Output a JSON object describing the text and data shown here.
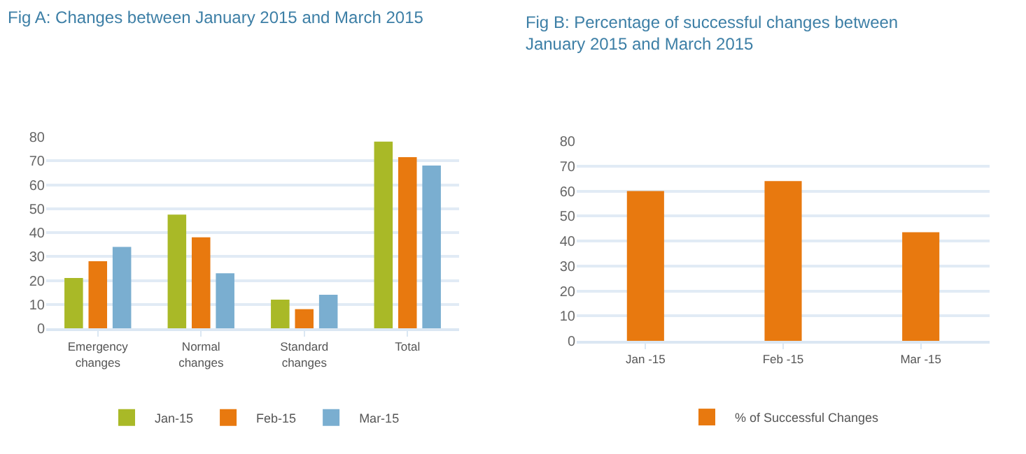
{
  "chart_data": [
    {
      "type": "bar",
      "title": "Fig A: Changes between January 2015 and March 2015",
      "categories": [
        "Emergency\nchanges",
        "Normal\nchanges",
        "Standard\nchanges",
        "Total"
      ],
      "series": [
        {
          "name": "Jan-15",
          "color": "#a9b927",
          "values": [
            21,
            47.5,
            12,
            78
          ]
        },
        {
          "name": "Feb-15",
          "color": "#e8790f",
          "values": [
            28,
            38,
            8,
            71.5
          ]
        },
        {
          "name": "Mar-15",
          "color": "#7aaed0",
          "values": [
            34,
            23,
            14,
            68
          ]
        }
      ],
      "ylim": [
        0,
        80
      ],
      "yticks": [
        0,
        10,
        20,
        30,
        40,
        50,
        60,
        70,
        80
      ],
      "grid": "y",
      "legend": "bottom"
    },
    {
      "type": "bar",
      "title": "Fig B: Percentage of successful changes between\nJanuary 2015 and March 2015",
      "categories": [
        "Jan -15",
        "Feb -15",
        "Mar -15"
      ],
      "series": [
        {
          "name": "% of Successful Changes",
          "color": "#e8790f",
          "values": [
            60,
            64,
            43.5
          ]
        }
      ],
      "ylim": [
        0,
        80
      ],
      "yticks": [
        0,
        10,
        20,
        30,
        40,
        50,
        60,
        70,
        80
      ],
      "grid": "y",
      "legend": "bottom"
    }
  ]
}
